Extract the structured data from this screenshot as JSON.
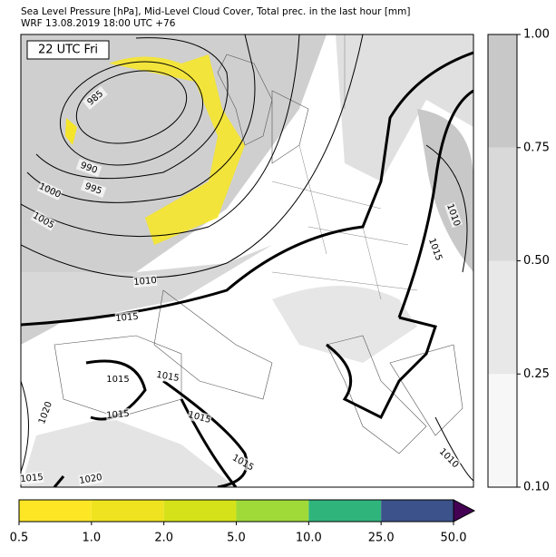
{
  "title": "Sea Level Pressure [hPa], Mid-Level Cloud Cover, Total prec. in the last hour [mm]",
  "subtitle": "WRF 13.08.2019 18:00 UTC +76",
  "map_label": "22 UTC Fri",
  "cloud_colorbar": {
    "ticks": [
      "0.10",
      "0.25",
      "0.50",
      "0.75",
      "1.00"
    ],
    "colors": [
      "#f7f7f7",
      "#e8e8e8",
      "#d9d9d9",
      "#c8c8c8"
    ]
  },
  "precip_colorbar": {
    "ticks": [
      "0.5",
      "1.0",
      "2.0",
      "5.0",
      "10.0",
      "25.0",
      "50.0"
    ],
    "colors": [
      "#fde725",
      "#efe31f",
      "#d5e21a",
      "#a0da39",
      "#2fb47c",
      "#3b528b"
    ],
    "over_color": "#440154"
  },
  "contour_labels": [
    "985",
    "990",
    "995",
    "1000",
    "1005",
    "1010",
    "1015",
    "1015",
    "1015",
    "1015",
    "1015",
    "1015",
    "1020",
    "1015",
    "1020",
    "1010",
    "1015",
    "1010"
  ]
}
